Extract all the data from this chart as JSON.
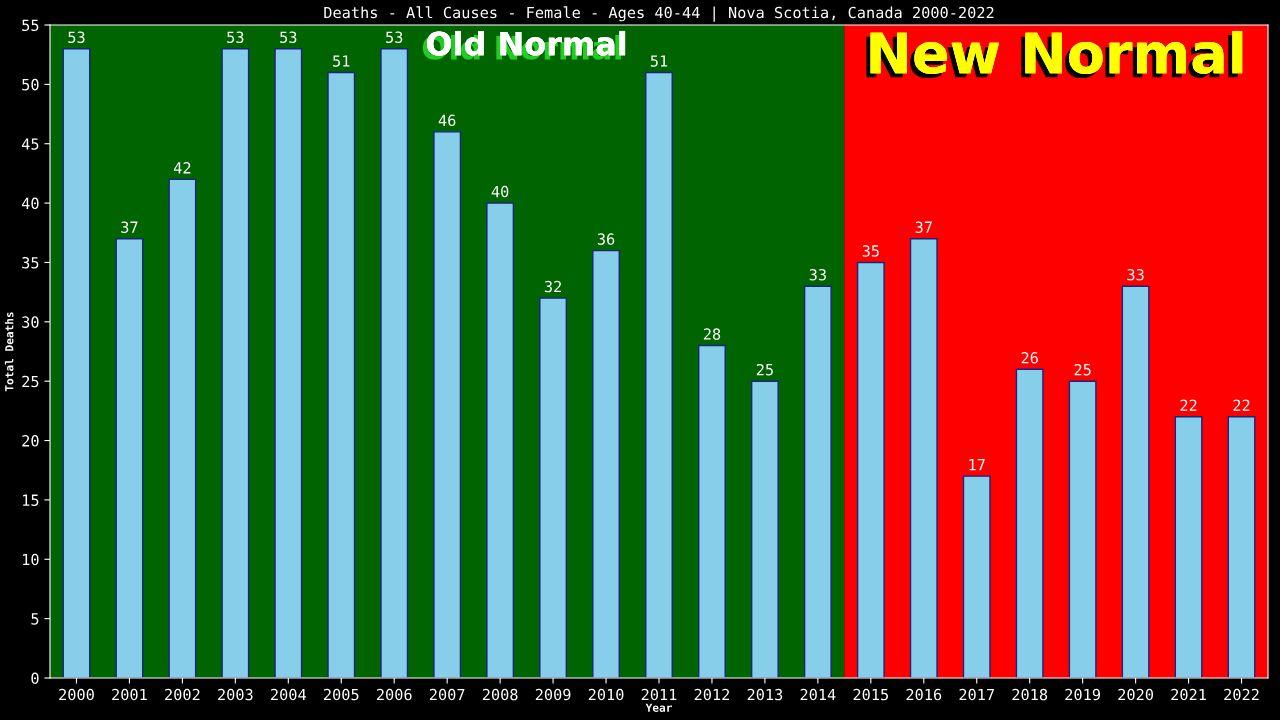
{
  "chart_data": {
    "type": "bar",
    "title": "Deaths - All Causes - Female - Ages 40-44 | Nova Scotia, Canada 2000-2022",
    "xlabel": "Year",
    "ylabel": "Total Deaths",
    "categories": [
      "2000",
      "2001",
      "2002",
      "2003",
      "2004",
      "2005",
      "2006",
      "2007",
      "2008",
      "2009",
      "2010",
      "2011",
      "2012",
      "2013",
      "2014",
      "2015",
      "2016",
      "2017",
      "2018",
      "2019",
      "2020",
      "2021",
      "2022"
    ],
    "values": [
      53,
      37,
      42,
      53,
      53,
      51,
      53,
      46,
      40,
      32,
      36,
      51,
      28,
      25,
      33,
      35,
      37,
      17,
      26,
      25,
      33,
      22,
      22
    ],
    "color": "#87ceeb",
    "ylim": [
      0,
      55
    ],
    "yticks": [
      0,
      5,
      10,
      15,
      20,
      25,
      30,
      35,
      40,
      45,
      50,
      55
    ],
    "bands": [
      {
        "axis": "x",
        "from": "2000",
        "to": "2014",
        "label": "Old Normal",
        "color": "#006400"
      },
      {
        "axis": "x",
        "from": "2015",
        "to": "2022",
        "label": "New Normal",
        "color": "#ff0000"
      }
    ],
    "data_labels": true,
    "grid": false,
    "legend": false
  }
}
